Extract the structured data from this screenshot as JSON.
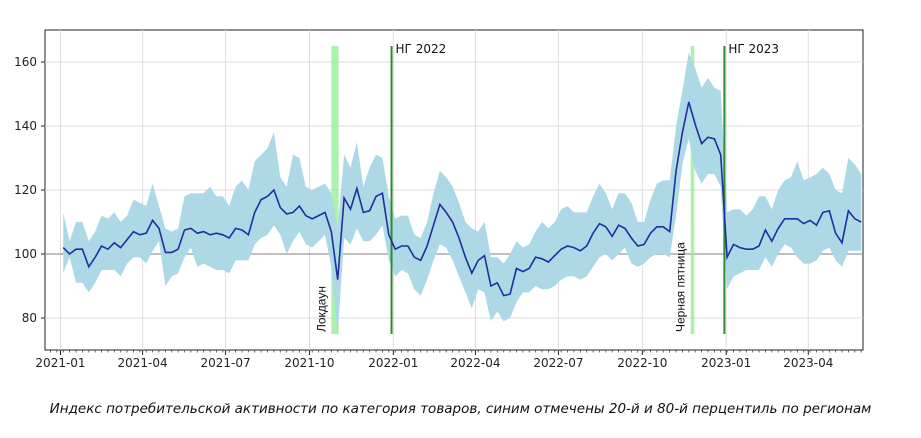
{
  "caption": "Индекс потребительской активности по категория товаров, синим отмечены 20-й и 80-й перцентиль по регионам",
  "chart_data": {
    "type": "line",
    "title": "",
    "xlabel": "",
    "ylabel": "",
    "x_range": [
      "2020-12-15",
      "2023-05-31"
    ],
    "ylim": [
      70,
      170
    ],
    "y_ticks": [
      80,
      100,
      120,
      140,
      160
    ],
    "x_ticks": [
      "2021-01",
      "2021-04",
      "2021-07",
      "2021-10",
      "2022-01",
      "2022-04",
      "2022-07",
      "2022-10",
      "2023-01",
      "2023-04"
    ],
    "grid": true,
    "reference_line": 100,
    "colors": {
      "line": "#1f2f9e",
      "band": "#add8e6",
      "green_band": "#90ee90",
      "green_line": "#2e8b2e",
      "reference": "#999999"
    },
    "series": [
      {
        "values": [
          [
            "2021-01-04",
            102,
            94,
            113
          ],
          [
            "2021-01-11",
            100,
            99,
            104
          ],
          [
            "2021-01-18",
            101.5,
            91,
            110
          ],
          [
            "2021-01-25",
            101.5,
            91,
            110
          ],
          [
            "2021-02-01",
            96,
            88,
            104
          ],
          [
            "2021-02-08",
            99,
            91,
            107
          ],
          [
            "2021-02-15",
            102.5,
            95,
            112
          ],
          [
            "2021-02-22",
            101.5,
            95,
            111
          ],
          [
            "2021-03-01",
            103.5,
            95,
            113
          ],
          [
            "2021-03-08",
            102,
            93,
            110
          ],
          [
            "2021-03-15",
            104.5,
            97,
            112
          ],
          [
            "2021-03-22",
            107,
            99,
            117
          ],
          [
            "2021-03-29",
            106,
            99,
            116
          ],
          [
            "2021-04-05",
            106.5,
            97,
            115
          ],
          [
            "2021-04-12",
            110.5,
            101,
            122
          ],
          [
            "2021-04-19",
            108,
            104,
            115
          ],
          [
            "2021-04-26",
            100.5,
            90,
            108
          ],
          [
            "2021-05-03",
            100.5,
            93,
            107
          ],
          [
            "2021-05-10",
            101.5,
            94,
            108
          ],
          [
            "2021-05-17",
            107.5,
            99,
            118
          ],
          [
            "2021-05-24",
            108,
            102,
            119
          ],
          [
            "2021-05-31",
            106.5,
            96,
            119
          ],
          [
            "2021-06-07",
            107,
            97,
            119
          ],
          [
            "2021-06-14",
            106,
            96,
            121
          ],
          [
            "2021-06-21",
            106.5,
            95,
            118
          ],
          [
            "2021-06-28",
            106,
            95,
            118
          ],
          [
            "2021-07-05",
            105,
            94,
            115
          ],
          [
            "2021-07-12",
            108,
            98,
            121
          ],
          [
            "2021-07-19",
            107.5,
            98,
            123
          ],
          [
            "2021-07-26",
            106,
            98,
            120
          ],
          [
            "2021-08-02",
            113,
            103,
            129
          ],
          [
            "2021-08-09",
            117,
            105,
            131
          ],
          [
            "2021-08-16",
            118,
            106,
            133
          ],
          [
            "2021-08-23",
            120,
            109,
            138
          ],
          [
            "2021-08-30",
            114.5,
            106,
            124
          ],
          [
            "2021-09-06",
            112.5,
            100,
            121
          ],
          [
            "2021-09-13",
            113,
            104,
            131
          ],
          [
            "2021-09-20",
            115,
            107,
            130
          ],
          [
            "2021-09-27",
            112,
            103,
            121
          ],
          [
            "2021-10-04",
            111,
            102,
            120
          ],
          [
            "2021-10-11",
            112,
            104,
            121
          ],
          [
            "2021-10-18",
            113,
            106,
            122
          ],
          [
            "2021-10-25",
            107,
            96,
            119
          ],
          [
            "2021-11-01",
            92,
            75,
            108
          ],
          [
            "2021-11-08",
            117.5,
            105,
            131
          ],
          [
            "2021-11-15",
            114,
            103,
            127
          ],
          [
            "2021-11-22",
            120.5,
            108,
            135
          ],
          [
            "2021-11-29",
            113,
            104,
            121
          ],
          [
            "2021-12-06",
            113.5,
            104,
            127
          ],
          [
            "2021-12-13",
            118,
            106,
            131
          ],
          [
            "2021-12-20",
            119,
            109,
            130
          ],
          [
            "2021-12-27",
            106,
            98,
            118
          ],
          [
            "2022-01-03",
            101.5,
            93,
            111
          ],
          [
            "2022-01-10",
            102.5,
            95,
            112
          ],
          [
            "2022-01-17",
            102.5,
            94,
            112
          ],
          [
            "2022-01-24",
            99,
            89,
            106
          ],
          [
            "2022-01-31",
            98,
            87,
            105
          ],
          [
            "2022-02-07",
            102.5,
            92,
            110
          ],
          [
            "2022-02-14",
            109,
            98,
            119
          ],
          [
            "2022-02-21",
            115.5,
            103,
            126
          ],
          [
            "2022-02-28",
            113,
            102,
            124
          ],
          [
            "2022-03-07",
            110,
            98,
            121
          ],
          [
            "2022-03-14",
            105,
            93,
            116
          ],
          [
            "2022-03-21",
            99,
            88,
            110
          ],
          [
            "2022-03-28",
            94,
            83,
            108
          ],
          [
            "2022-04-04",
            98,
            89,
            107
          ],
          [
            "2022-04-11",
            99.5,
            88,
            110
          ],
          [
            "2022-04-18",
            90,
            79,
            99
          ],
          [
            "2022-04-25",
            91,
            82,
            99
          ],
          [
            "2022-05-02",
            87,
            79,
            97
          ],
          [
            "2022-05-09",
            87.5,
            80,
            100
          ],
          [
            "2022-05-16",
            95.5,
            85,
            104
          ],
          [
            "2022-05-23",
            94.5,
            88,
            102
          ],
          [
            "2022-05-30",
            95.5,
            88,
            103
          ],
          [
            "2022-06-06",
            99,
            90,
            107
          ],
          [
            "2022-06-13",
            98.5,
            89,
            110
          ],
          [
            "2022-06-20",
            97.5,
            89,
            108
          ],
          [
            "2022-06-27",
            99.5,
            90,
            110
          ],
          [
            "2022-07-04",
            101.5,
            92,
            114
          ],
          [
            "2022-07-11",
            102.5,
            93,
            115
          ],
          [
            "2022-07-18",
            102,
            93,
            113
          ],
          [
            "2022-07-25",
            101,
            92,
            113
          ],
          [
            "2022-08-01",
            102.5,
            93,
            113
          ],
          [
            "2022-08-08",
            106.5,
            96,
            118
          ],
          [
            "2022-08-15",
            109.5,
            99,
            122
          ],
          [
            "2022-08-22",
            108.5,
            100,
            119
          ],
          [
            "2022-08-29",
            105.5,
            98,
            114
          ],
          [
            "2022-09-05",
            109,
            100,
            119
          ],
          [
            "2022-09-12",
            108,
            102,
            119
          ],
          [
            "2022-09-19",
            105,
            97,
            116
          ],
          [
            "2022-09-26",
            102.5,
            96,
            110
          ],
          [
            "2022-10-03",
            103,
            97,
            110
          ],
          [
            "2022-10-10",
            106.5,
            99,
            117
          ],
          [
            "2022-10-17",
            108.5,
            100,
            122
          ],
          [
            "2022-10-24",
            108.5,
            100,
            123
          ],
          [
            "2022-10-31",
            107,
            99,
            123
          ],
          [
            "2022-11-07",
            126,
            112,
            140
          ],
          [
            "2022-11-14",
            138,
            128,
            151
          ],
          [
            "2022-11-21",
            147.5,
            136,
            163
          ],
          [
            "2022-11-28",
            140.5,
            126,
            158
          ],
          [
            "2022-12-05",
            134.5,
            122,
            152
          ],
          [
            "2022-12-12",
            136.5,
            125,
            155
          ],
          [
            "2022-12-19",
            136,
            125,
            152
          ],
          [
            "2022-12-26",
            131,
            121,
            151
          ],
          [
            "2023-01-02",
            99,
            89,
            113
          ],
          [
            "2023-01-09",
            103,
            93,
            114
          ],
          [
            "2023-01-16",
            102,
            94,
            114
          ],
          [
            "2023-01-23",
            101.5,
            95,
            112
          ],
          [
            "2023-01-30",
            101.5,
            95,
            114
          ],
          [
            "2023-02-06",
            102.5,
            95,
            118
          ],
          [
            "2023-02-13",
            107.5,
            99,
            118
          ],
          [
            "2023-02-20",
            104,
            96,
            114
          ],
          [
            "2023-02-27",
            108,
            100,
            120
          ],
          [
            "2023-03-06",
            111,
            103,
            123
          ],
          [
            "2023-03-13",
            111,
            102,
            124
          ],
          [
            "2023-03-20",
            111,
            99,
            129
          ],
          [
            "2023-03-27",
            109.5,
            97,
            123
          ],
          [
            "2023-04-03",
            110.5,
            97,
            124
          ],
          [
            "2023-04-10",
            109,
            98,
            125
          ],
          [
            "2023-04-17",
            113,
            101,
            127
          ],
          [
            "2023-04-24",
            113.5,
            102,
            125
          ],
          [
            "2023-05-01",
            106.5,
            98,
            120
          ],
          [
            "2023-05-08",
            103.5,
            96,
            119
          ],
          [
            "2023-05-15",
            113.5,
            101,
            130
          ],
          [
            "2023-05-22",
            111,
            101,
            128
          ],
          [
            "2023-05-29",
            110,
            101,
            125
          ]
        ]
      }
    ],
    "annotations": {
      "green_bands": [
        {
          "label": "Локдаун",
          "start": "2021-10-25",
          "end": "2021-11-02"
        },
        {
          "label": "Черная пятница",
          "start": "2022-11-23",
          "end": "2022-11-27"
        }
      ],
      "green_lines": [
        {
          "label": "НГ 2022",
          "date": "2021-12-30"
        },
        {
          "label": "НГ 2023",
          "date": "2022-12-30"
        }
      ],
      "marker_top": 165,
      "marker_bottom": 75
    }
  }
}
